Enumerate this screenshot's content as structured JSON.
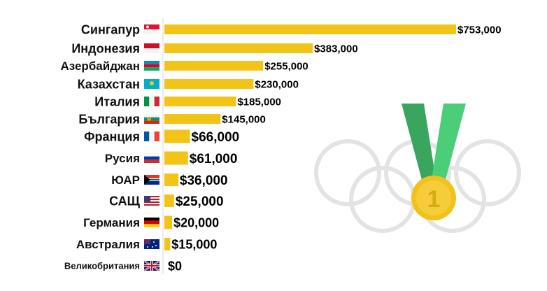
{
  "chart_data": {
    "type": "bar",
    "orientation": "horizontal",
    "categories": [
      "Сингапур",
      "Индонезия",
      "Азербайджан",
      "Казахстан",
      "Италия",
      "България",
      "Франция",
      "Русия",
      "ЮАР",
      "САЩ",
      "Германия",
      "Австралия",
      "Великобритания"
    ],
    "values": [
      753000,
      383000,
      255000,
      230000,
      185000,
      145000,
      66000,
      61000,
      36000,
      25000,
      20000,
      15000,
      0
    ],
    "value_labels": [
      "$753,000",
      "$383,000",
      "$255,000",
      "$230,000",
      "$185,000",
      "$145,000",
      "$66,000",
      "$61,000",
      "$36,000",
      "$25,000",
      "$20,000",
      "$15,000",
      "$0"
    ],
    "flags": [
      "flag-singapore-icon",
      "flag-indonesia-icon",
      "flag-azerbaijan-icon",
      "flag-kazakhstan-icon",
      "flag-italy-icon",
      "flag-bulgaria-icon",
      "flag-france-icon",
      "flag-russia-icon",
      "flag-south-africa-icon",
      "flag-usa-icon",
      "flag-germany-icon",
      "flag-australia-icon",
      "flag-uk-icon"
    ],
    "xlim": [
      0,
      753000
    ],
    "grid": false,
    "legend": "none",
    "bar_color": "#f2c418"
  },
  "background": {
    "decoration": "olympic-rings-and-gold-medal",
    "medal_text": "1",
    "ring_color": "#e3e3e3",
    "ribbon_color": "#49c373",
    "medal_color": "#f1c21c"
  }
}
